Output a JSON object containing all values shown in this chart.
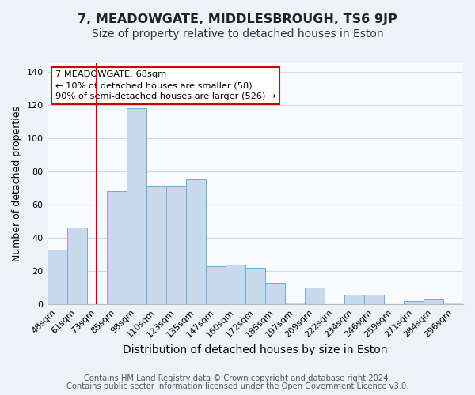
{
  "title": "7, MEADOWGATE, MIDDLESBROUGH, TS6 9JP",
  "subtitle": "Size of property relative to detached houses in Eston",
  "xlabel": "Distribution of detached houses by size in Eston",
  "ylabel": "Number of detached properties",
  "categories": [
    "48sqm",
    "61sqm",
    "73sqm",
    "85sqm",
    "98sqm",
    "110sqm",
    "123sqm",
    "135sqm",
    "147sqm",
    "160sqm",
    "172sqm",
    "185sqm",
    "197sqm",
    "209sqm",
    "222sqm",
    "234sqm",
    "246sqm",
    "259sqm",
    "271sqm",
    "284sqm",
    "296sqm"
  ],
  "values": [
    33,
    46,
    0,
    68,
    118,
    71,
    71,
    75,
    23,
    24,
    22,
    13,
    1,
    10,
    0,
    6,
    6,
    0,
    2,
    3,
    1
  ],
  "bar_color": "#c8d9ee",
  "bar_edge_color": "#6baed6",
  "vline_x_index": 2,
  "vline_color": "#cc0000",
  "annotation_title": "7 MEADOWGATE: 68sqm",
  "annotation_line1": "← 10% of detached houses are smaller (58)",
  "annotation_line2": "90% of semi-detached houses are larger (526) →",
  "ylim": [
    0,
    145
  ],
  "yticks": [
    0,
    20,
    40,
    60,
    80,
    100,
    120,
    140
  ],
  "footer1": "Contains HM Land Registry data © Crown copyright and database right 2024.",
  "footer2": "Contains public sector information licensed under the Open Government Licence v3.0.",
  "bg_color": "#eef2f8",
  "plot_bg_color": "#f8fafd",
  "title_fontsize": 11.5,
  "subtitle_fontsize": 10,
  "xlabel_fontsize": 10,
  "ylabel_fontsize": 9,
  "footer_fontsize": 7.2,
  "tick_fontsize": 8
}
